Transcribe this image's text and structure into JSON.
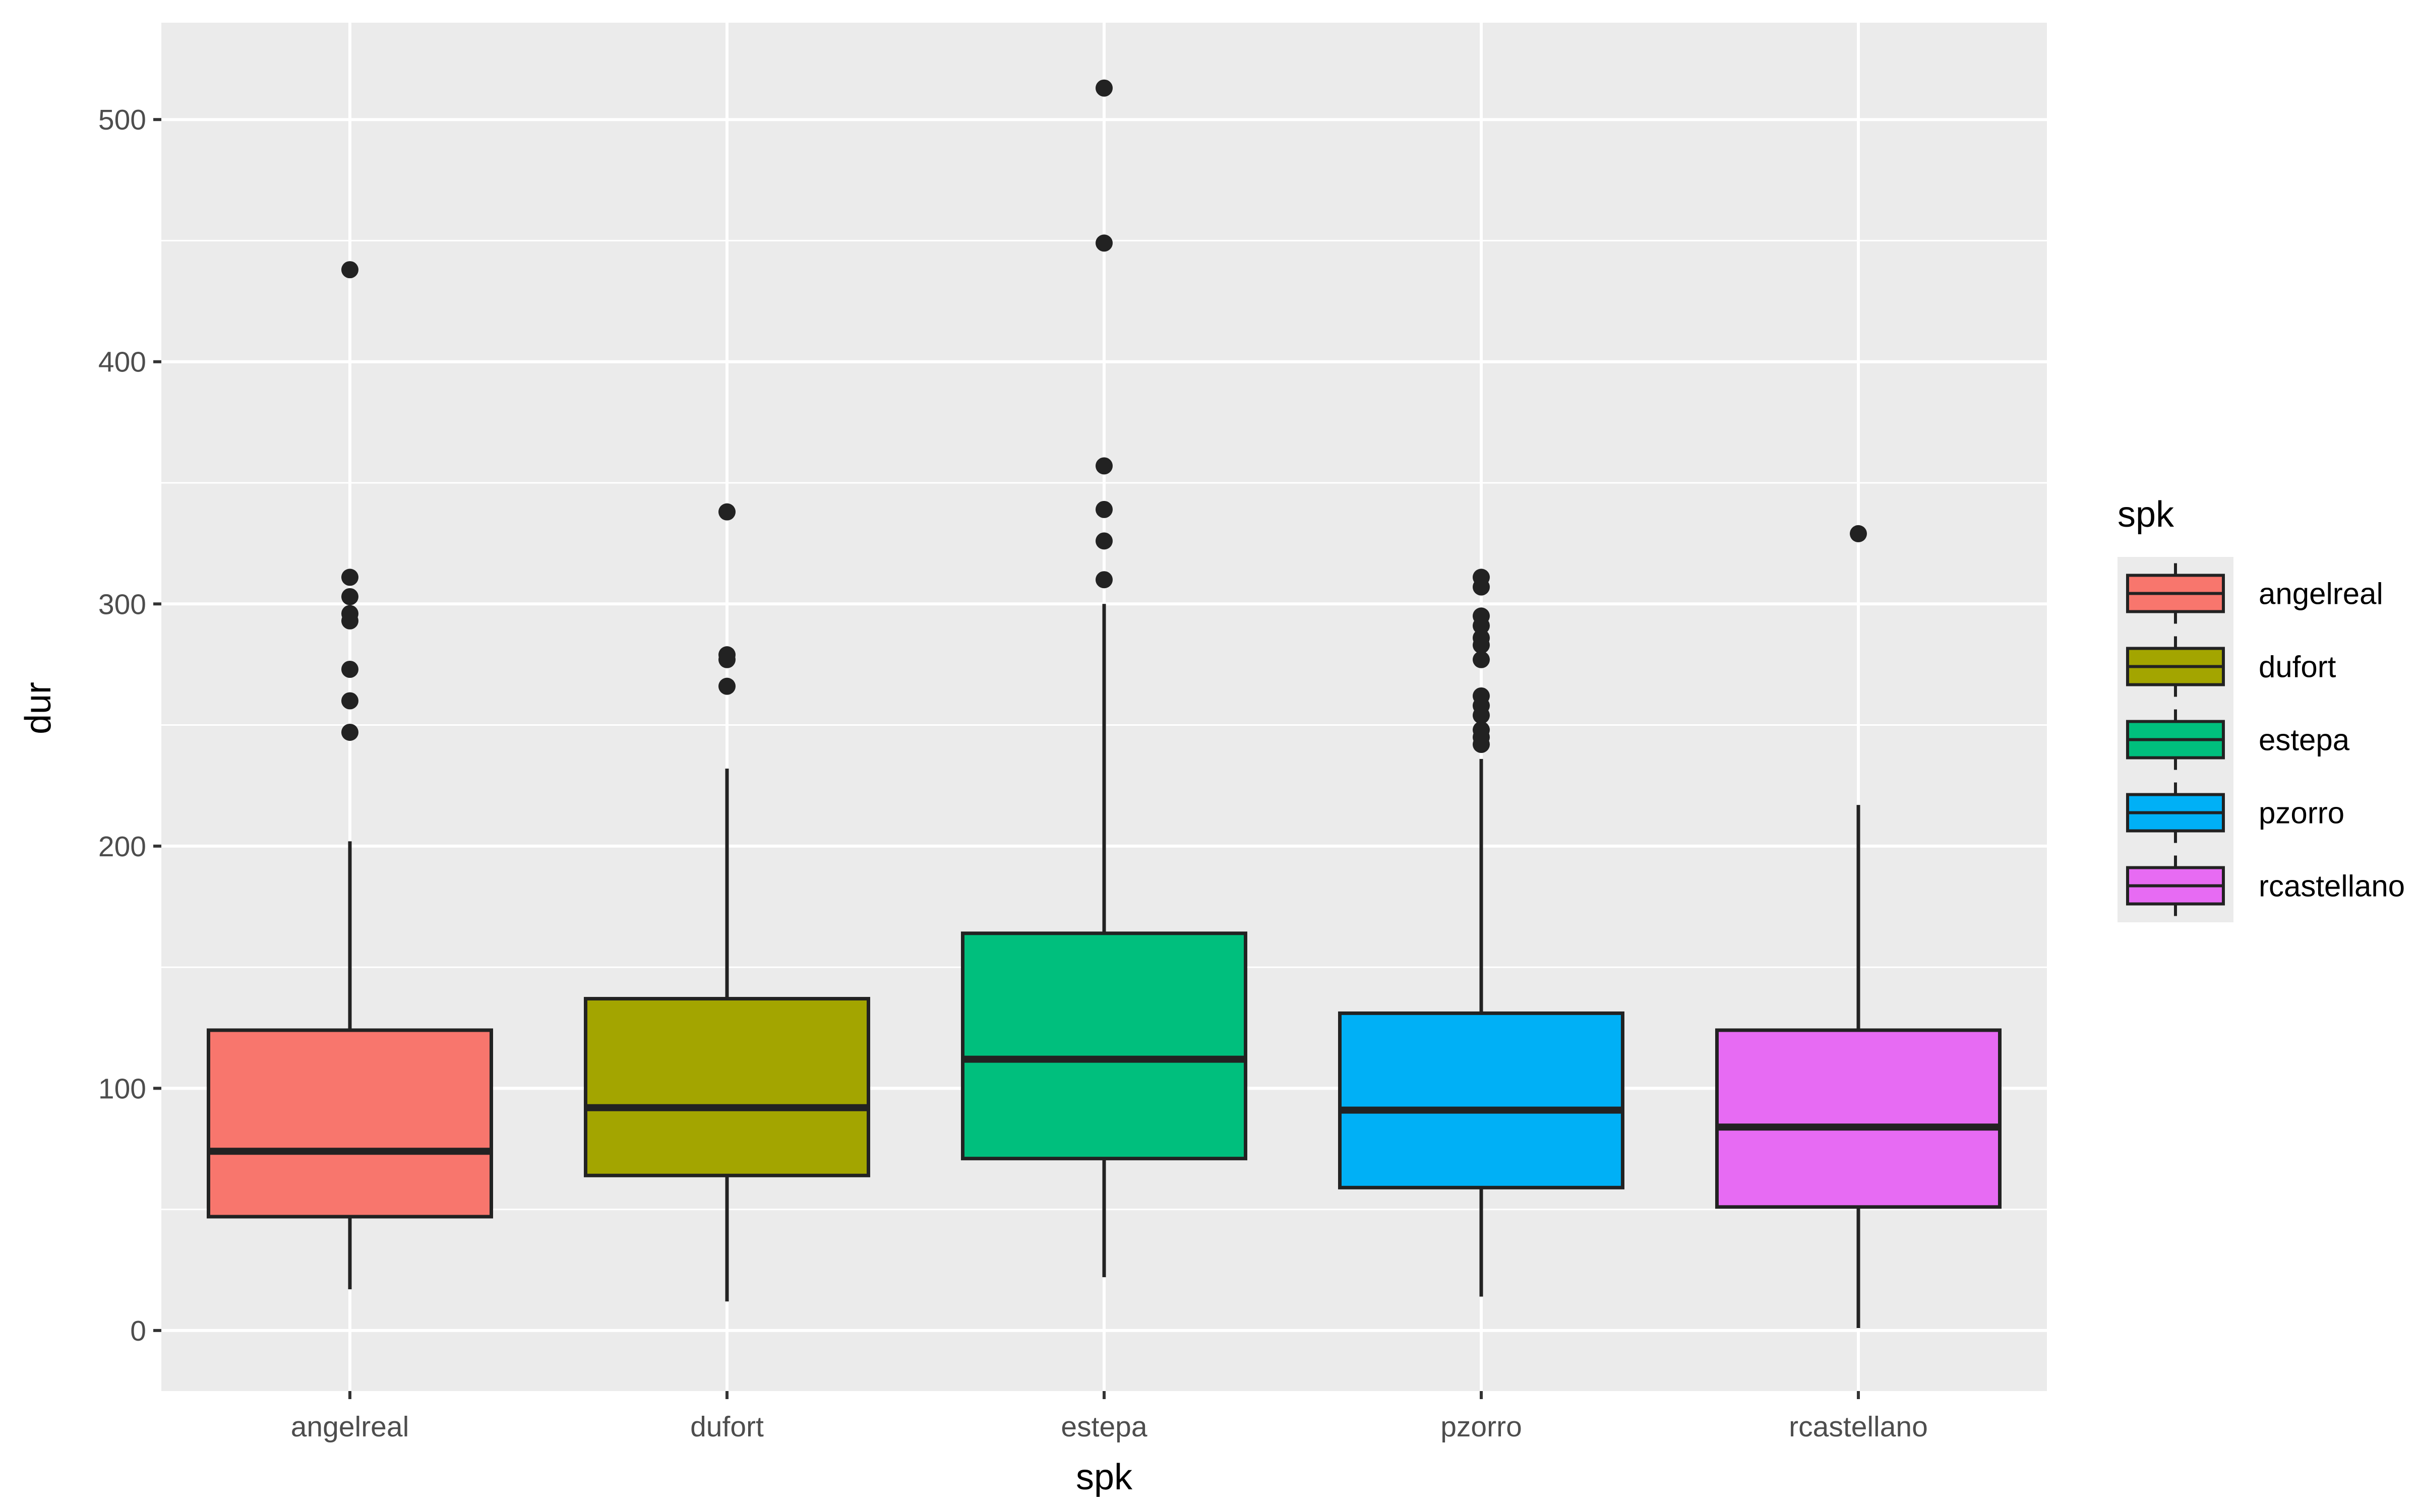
{
  "chart_data": {
    "type": "boxplot",
    "title": "",
    "xlabel": "spk",
    "ylabel": "dur",
    "ylim": [
      -25,
      540
    ],
    "yticks": [
      0,
      100,
      200,
      300,
      400,
      500
    ],
    "grid": true,
    "legend": {
      "title": "spk",
      "position": "right"
    },
    "categories": [
      "angelreal",
      "dufort",
      "estepa",
      "pzorro",
      "rcastellano"
    ],
    "boxes": [
      {
        "name": "angelreal",
        "color": "#F8766D",
        "min": 17,
        "q1": 47,
        "median": 74,
        "q3": 124,
        "max": 202,
        "outliers": [
          438,
          311,
          303,
          296,
          293,
          273,
          260,
          247
        ]
      },
      {
        "name": "dufort",
        "color": "#A3A500",
        "min": 12,
        "q1": 64,
        "median": 92,
        "q3": 137,
        "max": 232,
        "outliers": [
          338,
          279,
          277,
          266
        ]
      },
      {
        "name": "estepa",
        "color": "#00BF7D",
        "min": 22,
        "q1": 71,
        "median": 112,
        "q3": 164,
        "max": 300,
        "outliers": [
          513,
          449,
          357,
          339,
          326,
          310
        ]
      },
      {
        "name": "pzorro",
        "color": "#00B0F6",
        "min": 14,
        "q1": 59,
        "median": 91,
        "q3": 131,
        "max": 236,
        "outliers": [
          311,
          307,
          295,
          291,
          286,
          283,
          277,
          262,
          258,
          254,
          248,
          245,
          242
        ]
      },
      {
        "name": "rcastellano",
        "color": "#E76BF3",
        "min": 1,
        "q1": 51,
        "median": 84,
        "q3": 124,
        "max": 217,
        "outliers": [
          329
        ]
      }
    ]
  }
}
